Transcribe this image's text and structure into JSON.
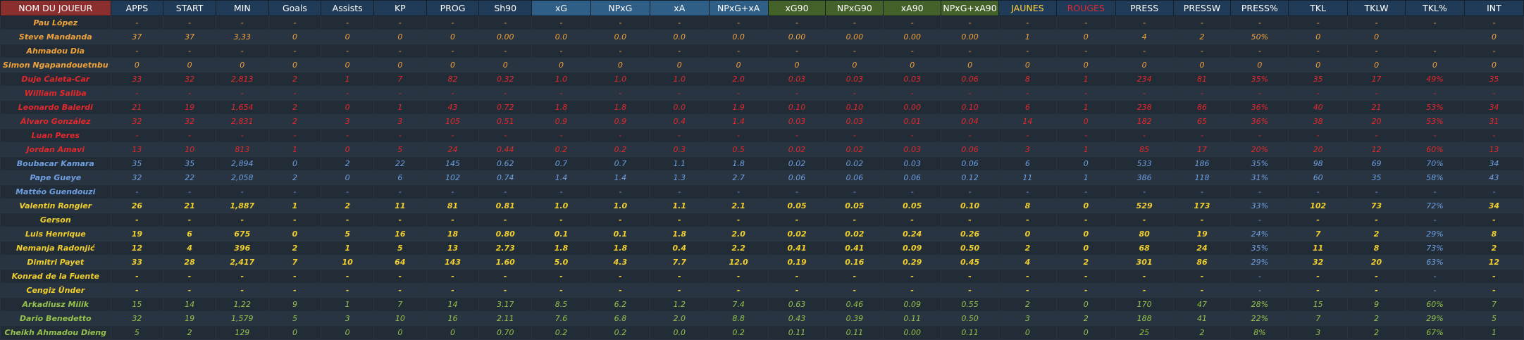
{
  "columns": [
    "NOM DU JOUEUR",
    "APPS",
    "START",
    "MIN",
    "Goals",
    "Assists",
    "KP",
    "PROG",
    "Sh90",
    "xG",
    "NPxG",
    "xA",
    "NPxG+xA",
    "xG90",
    "NPxG90",
    "xA90",
    "NPxG+xA90",
    "JAUNES",
    "ROUGES",
    "PRESS",
    "PRESSW",
    "PRESS%",
    "TKL",
    "TKLW",
    "TKL%",
    "INT"
  ],
  "column_groups": [
    "name",
    "n",
    "n",
    "n",
    "n",
    "n",
    "n",
    "n",
    "n",
    "blue",
    "blue",
    "blue",
    "blue",
    "green",
    "green",
    "green",
    "green",
    "jaunes",
    "rouges",
    "n",
    "n",
    "n",
    "n",
    "n",
    "n",
    "n"
  ],
  "colors": {
    "orange": "#f0a23a",
    "red": "#e3272a",
    "blue": "#6f9fe0",
    "yellow": "#f0cf2c",
    "green": "#95c24c",
    "header_name_bg": "#8a2e2e",
    "header_xg_bg": "#2f5f86",
    "header_xg90_bg": "#45612a",
    "header_bg": "#1f3b57"
  },
  "rows": [
    {
      "color": "orange",
      "cells": [
        "Pau López",
        "-",
        "-",
        "-",
        "-",
        "-",
        "-",
        "-",
        "-",
        "-",
        "-",
        "-",
        "-",
        "-",
        "-",
        "-",
        "-",
        "-",
        "-",
        "-",
        "-",
        "-",
        "-",
        "-",
        "-",
        "-"
      ]
    },
    {
      "color": "orange",
      "cells": [
        "Steve Mandanda",
        "37",
        "37",
        "3,33",
        "0",
        "0",
        "0",
        "0",
        "0.00",
        "0.0",
        "0.0",
        "0.0",
        "0.0",
        "0.00",
        "0.00",
        "0.00",
        "0.00",
        "1",
        "0",
        "4",
        "2",
        "50%",
        "0",
        "0",
        "",
        "0"
      ]
    },
    {
      "color": "orange",
      "cells": [
        "Ahmadou Dia",
        "-",
        "-",
        "-",
        "-",
        "-",
        "-",
        "-",
        "-",
        "-",
        "-",
        "-",
        "-",
        "-",
        "-",
        "-",
        "-",
        "-",
        "-",
        "-",
        "-",
        "-",
        "-",
        "-",
        "-",
        "-"
      ]
    },
    {
      "color": "orange",
      "cells": [
        "Simon Ngapandouetnbu",
        "0",
        "0",
        "0",
        "0",
        "0",
        "0",
        "0",
        "0",
        "0",
        "0",
        "0",
        "0",
        "0",
        "0",
        "0",
        "0",
        "0",
        "0",
        "0",
        "0",
        "0",
        "0",
        "0",
        "0",
        "0"
      ]
    },
    {
      "color": "red",
      "cells": [
        "Duje Ćaleta-Car",
        "33",
        "32",
        "2,813",
        "2",
        "1",
        "7",
        "82",
        "0.32",
        "1.0",
        "1.0",
        "1.0",
        "2.0",
        "0.03",
        "0.03",
        "0.03",
        "0.06",
        "8",
        "1",
        "234",
        "81",
        "35%",
        "35",
        "17",
        "49%",
        "35"
      ]
    },
    {
      "color": "red",
      "cells": [
        "William Saliba",
        "-",
        "-",
        "-",
        "-",
        "-",
        "-",
        "-",
        "-",
        "-",
        "-",
        "-",
        "-",
        "-",
        "-",
        "-",
        "-",
        "-",
        "-",
        "-",
        "-",
        "-",
        "-",
        "-",
        "-",
        "-"
      ]
    },
    {
      "color": "red",
      "cells": [
        "Leonardo Balerdi",
        "21",
        "19",
        "1,654",
        "2",
        "0",
        "1",
        "43",
        "0.72",
        "1.8",
        "1.8",
        "0.0",
        "1.9",
        "0.10",
        "0.10",
        "0.00",
        "0.10",
        "6",
        "1",
        "238",
        "86",
        "36%",
        "40",
        "21",
        "53%",
        "34"
      ]
    },
    {
      "color": "red",
      "cells": [
        "Álvaro González",
        "32",
        "32",
        "2,831",
        "2",
        "3",
        "3",
        "105",
        "0.51",
        "0.9",
        "0.9",
        "0.4",
        "1.4",
        "0.03",
        "0.03",
        "0.01",
        "0.04",
        "14",
        "0",
        "182",
        "65",
        "36%",
        "38",
        "20",
        "53%",
        "31"
      ]
    },
    {
      "color": "red",
      "cells": [
        "Luan Peres",
        "-",
        "-",
        "-",
        "-",
        "-",
        "-",
        "-",
        "-",
        "-",
        "-",
        "-",
        "-",
        "-",
        "-",
        "-",
        "-",
        "-",
        "-",
        "-",
        "-",
        "-",
        "-",
        "-",
        "-",
        "-"
      ]
    },
    {
      "color": "red",
      "cells": [
        "Jordan Amavi",
        "13",
        "10",
        "813",
        "1",
        "0",
        "5",
        "24",
        "0.44",
        "0.2",
        "0.2",
        "0.3",
        "0.5",
        "0.02",
        "0.02",
        "0.03",
        "0.06",
        "3",
        "1",
        "85",
        "17",
        "20%",
        "20",
        "12",
        "60%",
        "13"
      ]
    },
    {
      "color": "blue",
      "cells": [
        "Boubacar Kamara",
        "35",
        "35",
        "2,894",
        "0",
        "2",
        "22",
        "145",
        "0.62",
        "0.7",
        "0.7",
        "1.1",
        "1.8",
        "0.02",
        "0.02",
        "0.03",
        "0.06",
        "6",
        "0",
        "533",
        "186",
        "35%",
        "98",
        "69",
        "70%",
        "34"
      ]
    },
    {
      "color": "blue",
      "cells": [
        "Pape Gueye",
        "32",
        "22",
        "2,058",
        "2",
        "0",
        "6",
        "102",
        "0.74",
        "1.4",
        "1.4",
        "1.3",
        "2.7",
        "0.06",
        "0.06",
        "0.06",
        "0.12",
        "11",
        "1",
        "386",
        "118",
        "31%",
        "60",
        "35",
        "58%",
        "43"
      ]
    },
    {
      "color": "blue",
      "cells": [
        "Mattéo Guendouzi",
        "-",
        "-",
        "-",
        "-",
        "-",
        "-",
        "-",
        "-",
        "-",
        "-",
        "-",
        "-",
        "-",
        "-",
        "-",
        "-",
        "-",
        "-",
        "-",
        "-",
        "-",
        "-",
        "-",
        "-",
        "-"
      ]
    },
    {
      "color": "yellow",
      "cells": [
        "Valentin Rongier",
        "26",
        "21",
        "1,887",
        "1",
        "2",
        "11",
        "81",
        "0.81",
        "1.0",
        "1.0",
        "1.1",
        "2.1",
        "0.05",
        "0.05",
        "0.05",
        "0.10",
        "8",
        "0",
        "529",
        "173",
        "33%",
        "102",
        "73",
        "72%",
        "34"
      ]
    },
    {
      "color": "yellow",
      "cells": [
        "Gerson",
        "-",
        "-",
        "-",
        "-",
        "-",
        "-",
        "-",
        "-",
        "-",
        "-",
        "-",
        "-",
        "-",
        "-",
        "-",
        "-",
        "-",
        "-",
        "-",
        "-",
        "-",
        "-",
        "-",
        "-",
        "-"
      ]
    },
    {
      "color": "yellow",
      "cells": [
        "Luis Henrique",
        "19",
        "6",
        "675",
        "0",
        "5",
        "16",
        "18",
        "0.80",
        "0.1",
        "0.1",
        "1.8",
        "2.0",
        "0.02",
        "0.02",
        "0.24",
        "0.26",
        "0",
        "0",
        "80",
        "19",
        "24%",
        "7",
        "2",
        "29%",
        "8"
      ]
    },
    {
      "color": "yellow",
      "cells": [
        "Nemanja Radonjić",
        "12",
        "4",
        "396",
        "2",
        "1",
        "5",
        "13",
        "2.73",
        "1.8",
        "1.8",
        "0.4",
        "2.2",
        "0.41",
        "0.41",
        "0.09",
        "0.50",
        "2",
        "0",
        "68",
        "24",
        "35%",
        "11",
        "8",
        "73%",
        "2"
      ]
    },
    {
      "color": "yellow",
      "cells": [
        "Dimitri Payet",
        "33",
        "28",
        "2,417",
        "7",
        "10",
        "64",
        "143",
        "1.60",
        "5.0",
        "4.3",
        "7.7",
        "12.0",
        "0.19",
        "0.16",
        "0.29",
        "0.45",
        "4",
        "2",
        "301",
        "86",
        "29%",
        "32",
        "20",
        "63%",
        "12"
      ]
    },
    {
      "color": "yellow",
      "cells": [
        "Konrad de la Fuente",
        "-",
        "-",
        "-",
        "-",
        "-",
        "-",
        "-",
        "-",
        "-",
        "-",
        "-",
        "-",
        "-",
        "-",
        "-",
        "-",
        "-",
        "-",
        "-",
        "-",
        "-",
        "-",
        "-",
        "-",
        "-"
      ]
    },
    {
      "color": "yellow",
      "cells": [
        "Cengiz Ünder",
        "-",
        "-",
        "-",
        "-",
        "-",
        "-",
        "-",
        "-",
        "-",
        "-",
        "-",
        "-",
        "-",
        "-",
        "-",
        "-",
        "-",
        "-",
        "-",
        "-",
        "-",
        "-",
        "-",
        "-",
        "-"
      ]
    },
    {
      "color": "green",
      "cells": [
        "Arkadiusz Milik",
        "15",
        "14",
        "1,22",
        "9",
        "1",
        "7",
        "14",
        "3.17",
        "8.5",
        "6.2",
        "1.2",
        "7.4",
        "0.63",
        "0.46",
        "0.09",
        "0.55",
        "2",
        "0",
        "170",
        "47",
        "28%",
        "15",
        "9",
        "60%",
        "7"
      ]
    },
    {
      "color": "green",
      "cells": [
        "Dario Benedetto",
        "32",
        "19",
        "1,579",
        "5",
        "3",
        "10",
        "16",
        "2.11",
        "7.6",
        "6.8",
        "2.0",
        "8.8",
        "0.43",
        "0.39",
        "0.11",
        "0.50",
        "3",
        "2",
        "188",
        "41",
        "22%",
        "7",
        "2",
        "29%",
        "5"
      ]
    },
    {
      "color": "green",
      "cells": [
        "Cheikh Ahmadou Dieng",
        "5",
        "2",
        "129",
        "0",
        "0",
        "0",
        "0",
        "0.70",
        "0.2",
        "0.2",
        "0.0",
        "0.2",
        "0.11",
        "0.11",
        "0.00",
        "0.11",
        "0",
        "0",
        "25",
        "2",
        "8%",
        "3",
        "2",
        "67%",
        "1"
      ]
    }
  ]
}
